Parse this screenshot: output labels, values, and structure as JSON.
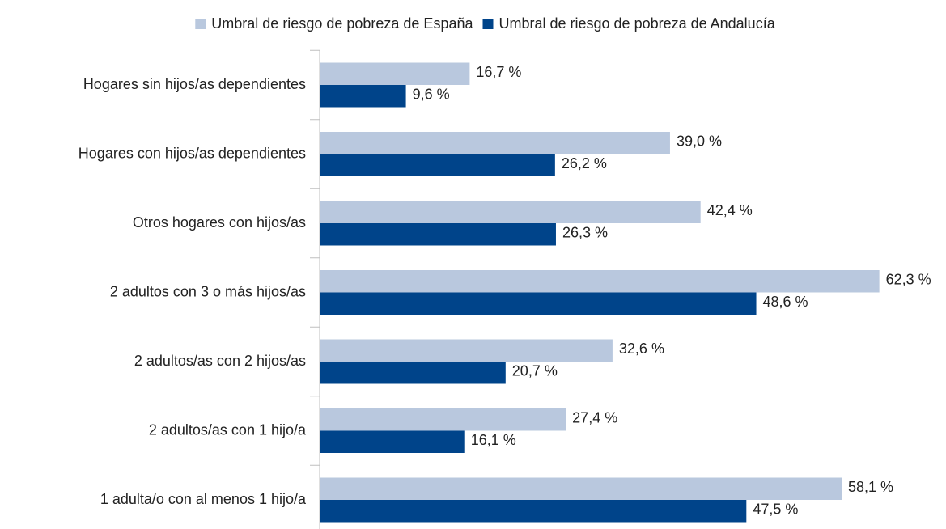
{
  "chart_data": {
    "type": "barh",
    "categories": [
      "Hogares sin hijos/as dependientes",
      "Hogares con hijos/as dependientes",
      "Otros hogares con hijos/as",
      "2 adultos con 3 o más hijos/as",
      "2 adultos/as con 2 hijos/as",
      "2 adultos/as con 1 hijo/a",
      "1 adulta/o con al menos 1 hijo/a"
    ],
    "series": [
      {
        "name": "Umbral de riesgo de pobreza de España",
        "color": "#b9c8de",
        "values": [
          16.7,
          39.0,
          42.4,
          62.3,
          32.6,
          27.4,
          58.1
        ],
        "value_labels": [
          "16,7 %",
          "39,0 %",
          "42,4 %",
          "62,3 %",
          "32,6 %",
          "27,4 %",
          "58,1 %"
        ]
      },
      {
        "name": "Umbral de riesgo de pobreza de Andalucía",
        "color": "#00448a",
        "values": [
          9.6,
          26.2,
          26.3,
          48.6,
          20.7,
          16.1,
          47.5
        ],
        "value_labels": [
          "9,6 %",
          "26,2 %",
          "26,3 %",
          "48,6 %",
          "20,7 %",
          "16,1 %",
          "47,5 %"
        ]
      }
    ],
    "xlim": [
      0,
      69
    ],
    "legend": "top"
  }
}
